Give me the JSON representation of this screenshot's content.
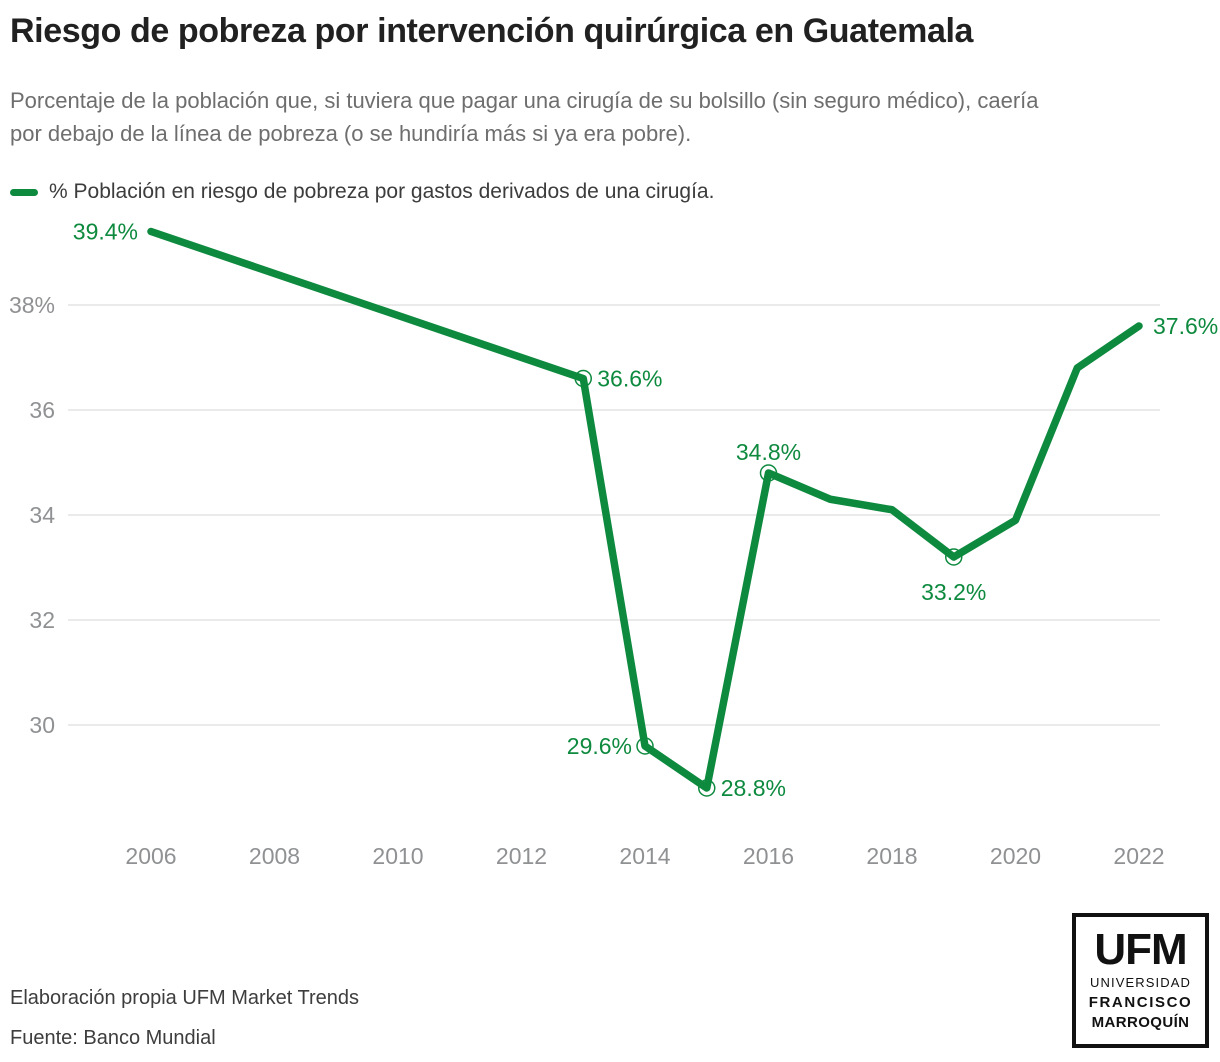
{
  "header": {
    "title": "Riesgo de pobreza por intervención quirúrgica en Guatemala",
    "subtitle_lines": [
      "Porcentaje de la población que, si tuviera que pagar una cirugía de su bolsillo (sin seguro médico), caería",
      "por debajo de la línea de pobreza (o se hundiría más si ya era pobre)."
    ]
  },
  "legend": {
    "label": "% Población en riesgo de pobreza por gastos derivados de una cirugía."
  },
  "chart_data": {
    "type": "line",
    "series": [
      {
        "name": "% Población en riesgo de pobreza por gastos derivados de una cirugía.",
        "x": [
          2006,
          2013,
          2014,
          2015,
          2016,
          2017,
          2018,
          2019,
          2020,
          2021,
          2022
        ],
        "values": [
          39.4,
          36.6,
          29.6,
          28.8,
          34.8,
          34.3,
          34.1,
          33.2,
          33.9,
          36.8,
          37.6
        ]
      }
    ],
    "xlabel": "",
    "ylabel": "",
    "xlim": [
      2004.7,
      2022.4
    ],
    "ylim": [
      28.2,
      39.8
    ],
    "yticks": [
      {
        "value": 38,
        "label": "38%"
      },
      {
        "value": 36,
        "label": "36"
      },
      {
        "value": 34,
        "label": "34"
      },
      {
        "value": 32,
        "label": "32"
      },
      {
        "value": 30,
        "label": "30"
      }
    ],
    "xticks": [
      2006,
      2008,
      2010,
      2012,
      2014,
      2016,
      2018,
      2020,
      2022
    ],
    "marker_years": [
      2013,
      2014,
      2015,
      2016,
      2019
    ],
    "point_labels": [
      {
        "year": 2006,
        "text": "39.4%",
        "pos": "left"
      },
      {
        "year": 2013,
        "text": "36.6%",
        "pos": "right"
      },
      {
        "year": 2014,
        "text": "29.6%",
        "pos": "left"
      },
      {
        "year": 2015,
        "text": "28.8%",
        "pos": "right"
      },
      {
        "year": 2016,
        "text": "34.8%",
        "pos": "above"
      },
      {
        "year": 2019,
        "text": "33.2%",
        "pos": "below"
      },
      {
        "year": 2022,
        "text": "37.6%",
        "pos": "right"
      }
    ],
    "grid": true,
    "legend_position": "top-left",
    "colors": {
      "line": "#0e8a3f",
      "grid": "#e4e4e4",
      "axis_text": "#8f9193",
      "label_text": "#0e8a3f"
    }
  },
  "footer": {
    "line1": "Elaboración propia UFM Market Trends",
    "line2": "Fuente: Banco Mundial"
  },
  "logo": {
    "acronym": "UFM",
    "line1": "UNIVERSIDAD",
    "line2": "FRANCISCO",
    "line3": "MARROQUÍN"
  }
}
